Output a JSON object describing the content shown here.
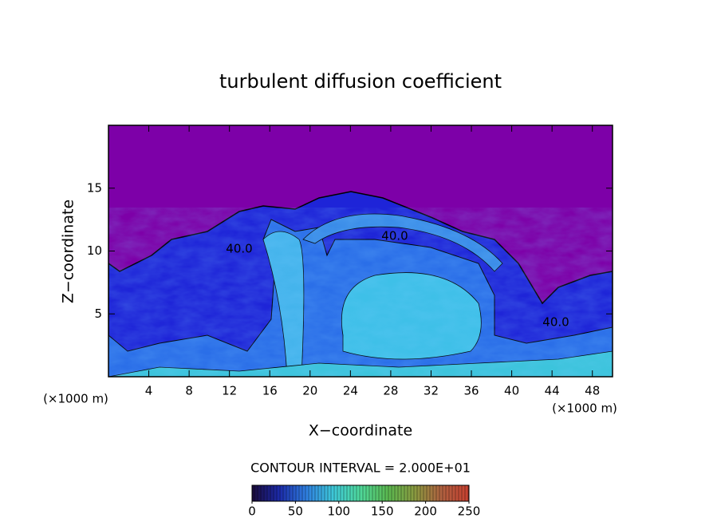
{
  "chart_data": {
    "type": "contour",
    "title": "turbulent diffusion coefficient",
    "xlabel": "X−coordinate",
    "ylabel": "Z−coordinate",
    "x_unit_left": "(×1000 m)",
    "x_unit_right": "(×1000 m)",
    "xlim": [
      0,
      50
    ],
    "xticks": [
      4,
      8,
      12,
      16,
      20,
      24,
      28,
      32,
      36,
      40,
      44,
      48
    ],
    "ylim": [
      0,
      20
    ],
    "yticks": [
      5,
      10,
      15
    ],
    "contour_labels": [
      "40.0",
      "40.0",
      "40.0"
    ],
    "contour_interval": "CONTOUR INTERVAL = 2.000E+01",
    "colorbar_lim": [
      0,
      250
    ],
    "colorbar_ticks": [
      0,
      50,
      100,
      150,
      200,
      250
    ],
    "colormap": [
      "#1a0a3a",
      "#1c2aa8",
      "#2f7fe0",
      "#3ec8d8",
      "#4fd89a",
      "#5ab850",
      "#8a9a40",
      "#b06040",
      "#c84030"
    ]
  }
}
